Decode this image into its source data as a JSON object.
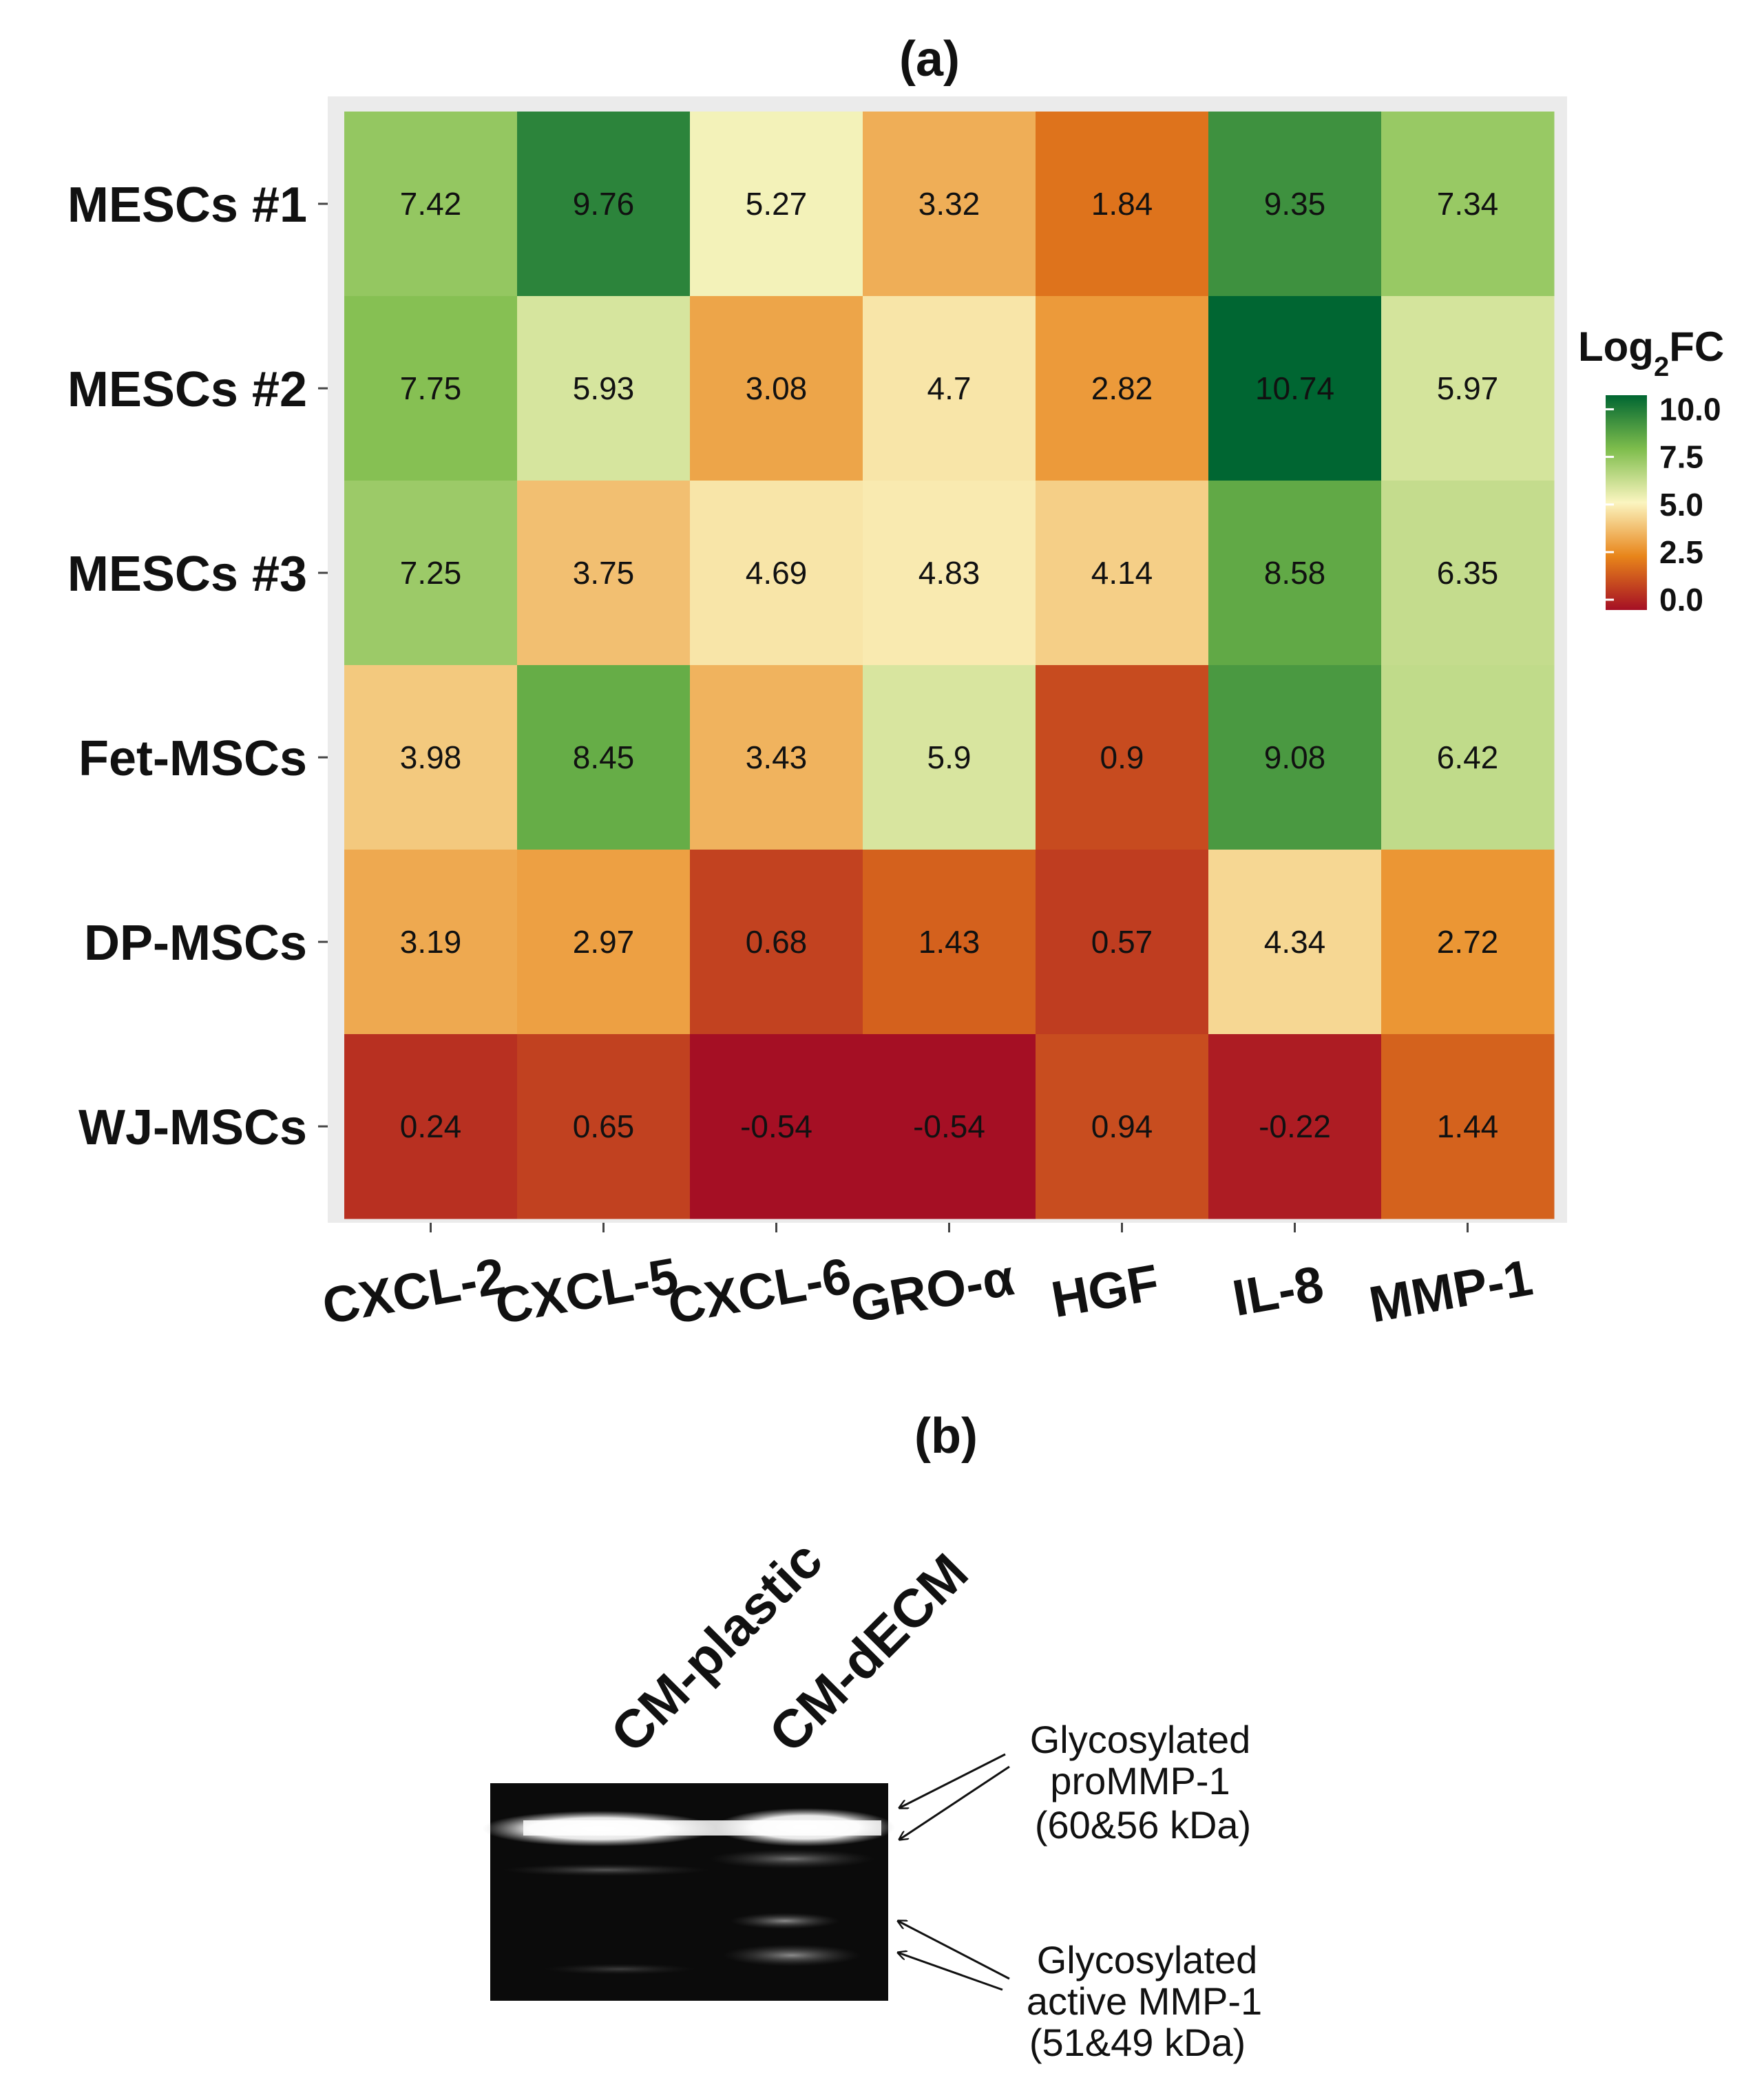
{
  "chart_data": {
    "type": "heatmap",
    "title": "(a)",
    "rows": [
      "MESCs #1",
      "MESCs #2",
      "MESCs #3",
      "Fet-MSCs",
      "DP-MSCs",
      "WJ-MSCs"
    ],
    "columns": [
      "CXCL-2",
      "CXCL-5",
      "CXCL-6",
      "GRO-α",
      "HGF",
      "IL-8",
      "MMP-1"
    ],
    "values": [
      [
        7.42,
        9.76,
        5.27,
        3.32,
        1.84,
        9.35,
        7.34
      ],
      [
        7.75,
        5.93,
        3.08,
        4.7,
        2.82,
        10.74,
        5.97
      ],
      [
        7.25,
        3.75,
        4.69,
        4.83,
        4.14,
        8.58,
        6.35
      ],
      [
        3.98,
        8.45,
        3.43,
        5.9,
        0.9,
        9.08,
        6.42
      ],
      [
        3.19,
        2.97,
        0.68,
        1.43,
        0.57,
        4.34,
        2.72
      ],
      [
        0.24,
        0.65,
        -0.54,
        -0.54,
        0.94,
        -0.22,
        1.44
      ]
    ],
    "legend": {
      "title_main": "Log",
      "title_sub": "2",
      "title_tail": "FC",
      "ticks": [
        10.0,
        7.5,
        5.0,
        2.5,
        0.0
      ],
      "tick_labels": [
        "10.0",
        "7.5",
        "5.0",
        "2.5",
        "0.0"
      ],
      "range": [
        -0.54,
        10.74
      ],
      "placement": "right"
    },
    "colors": {
      "low": "#a50f24",
      "mid_low": "#e8851a",
      "mid": "#fbf5c0",
      "mid_high": "#7ebd4c",
      "high": "#006632",
      "panel_background": "#ebebeb"
    }
  },
  "blot": {
    "title": "(b)",
    "lanes": [
      "CM-plastic",
      "CM-dECM"
    ],
    "annotation_top": [
      "Glycosylated",
      "proMMP-1",
      "(60&56 kDa)"
    ],
    "annotation_bottom": [
      "Glycosylated",
      "active MMP-1",
      "(51&49 kDa)"
    ]
  }
}
